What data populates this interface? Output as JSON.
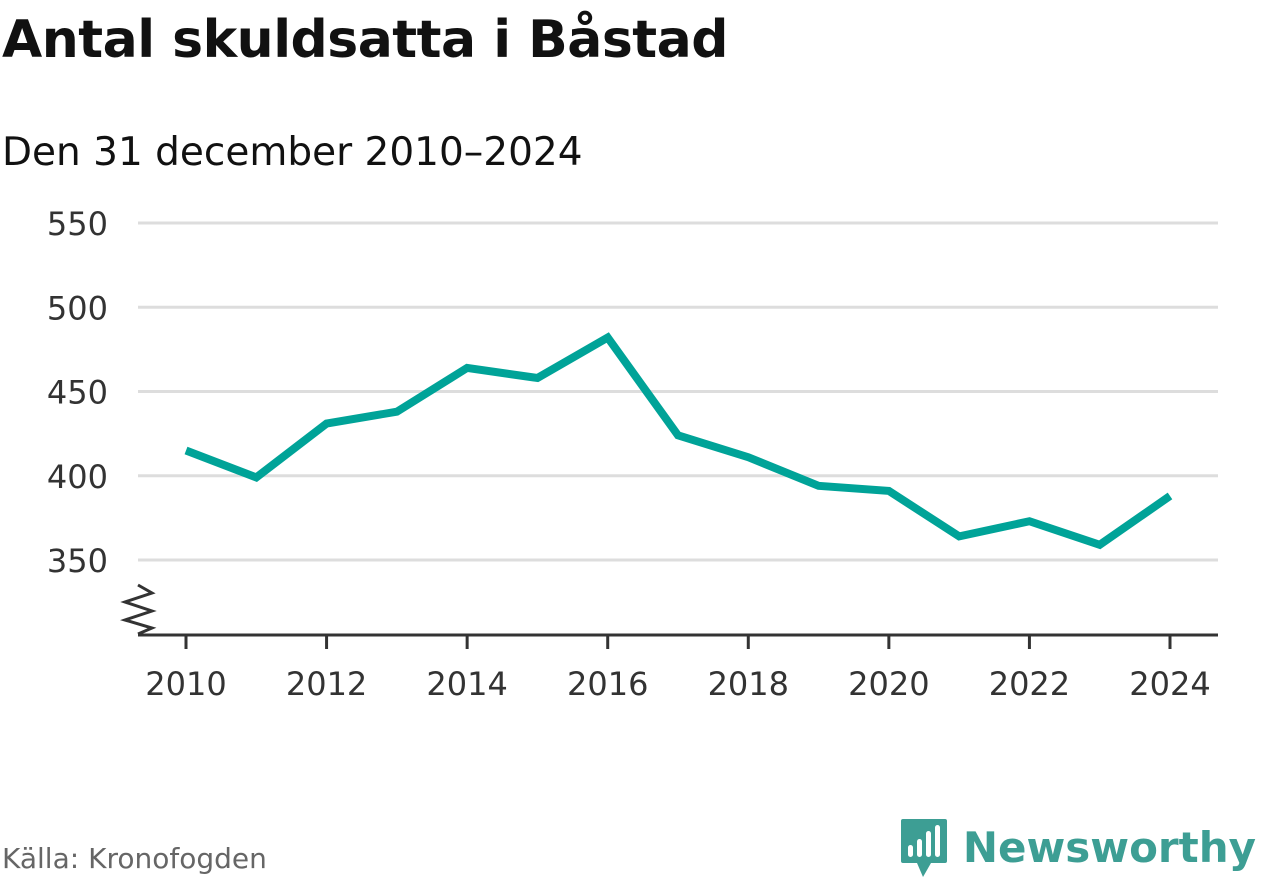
{
  "header": {
    "title": "Antal skuldsatta i Båstad",
    "subtitle": "Den 31 december 2010–2024"
  },
  "footer": {
    "source": "Källa: Kronofogden",
    "brand": "Newsworthy"
  },
  "colors": {
    "line": "#00a398",
    "grid": "#dddddd",
    "axis": "#333333",
    "brand": "#3d9e94"
  },
  "chart_data": {
    "type": "line",
    "title": "Antal skuldsatta i Båstad",
    "subtitle": "Den 31 december 2010–2024",
    "xlabel": "",
    "ylabel": "",
    "x": [
      2010,
      2011,
      2012,
      2013,
      2014,
      2015,
      2016,
      2017,
      2018,
      2019,
      2020,
      2021,
      2022,
      2023,
      2024
    ],
    "series": [
      {
        "values": [
          415,
          399,
          431,
          438,
          464,
          458,
          482,
          424,
          411,
          394,
          391,
          364,
          373,
          359,
          388
        ]
      }
    ],
    "xlim": [
      2010,
      2024
    ],
    "ylim": [
      350,
      550
    ],
    "x_ticks": [
      "2010",
      "2012",
      "2014",
      "2016",
      "2018",
      "2020",
      "2022",
      "2024"
    ],
    "y_ticks": [
      "350",
      "400",
      "450",
      "500",
      "550"
    ],
    "grid": true,
    "axis_break": true,
    "legend": "none"
  }
}
